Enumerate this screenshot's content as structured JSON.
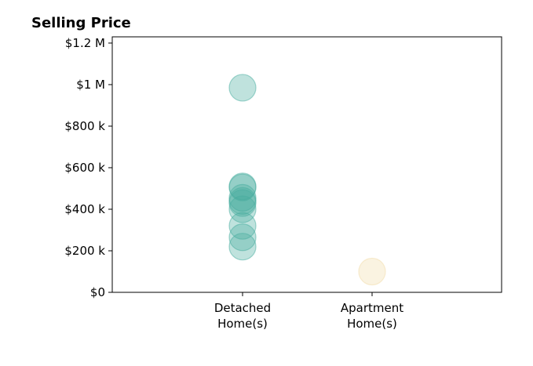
{
  "chart_data": {
    "type": "scatter",
    "title": "Selling Price",
    "xlabel": "",
    "ylabel": "",
    "categories": [
      "Detached\nHome(s)",
      "Apartment\nHome(s)"
    ],
    "ylim": [
      0,
      1230000
    ],
    "y_ticks": [
      {
        "value": 0,
        "label": "$0"
      },
      {
        "value": 200000,
        "label": "$200 k"
      },
      {
        "value": 400000,
        "label": "$400 k"
      },
      {
        "value": 600000,
        "label": "$600 k"
      },
      {
        "value": 800000,
        "label": "$800 k"
      },
      {
        "value": 1000000,
        "label": "$1 M"
      },
      {
        "value": 1200000,
        "label": "$1.2 M"
      }
    ],
    "grid": false,
    "legend": "none",
    "series": [
      {
        "category": "Detached\nHome(s)",
        "color": "#48ad9f",
        "values": [
          985000,
          510000,
          505000,
          455000,
          440000,
          430000,
          400000,
          320000,
          265000,
          220000
        ]
      },
      {
        "category": "Apartment\nHome(s)",
        "color": "#f2dca8",
        "values": [
          100000
        ]
      }
    ]
  }
}
